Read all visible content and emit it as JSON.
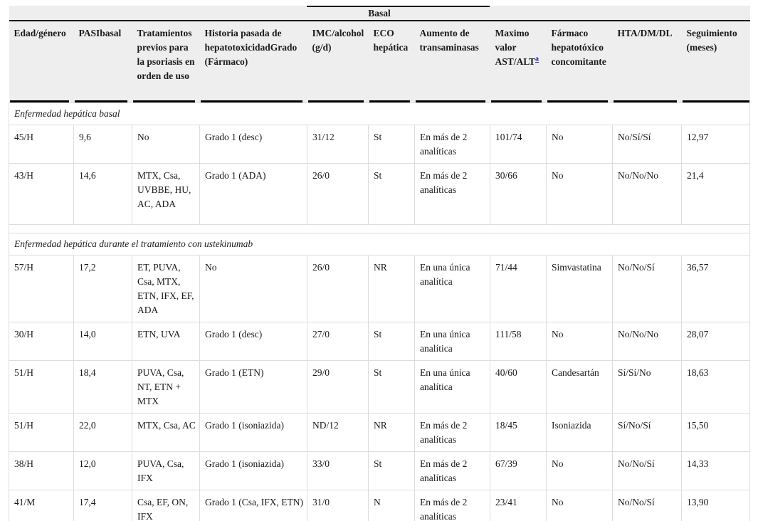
{
  "table": {
    "group_header": "Basal",
    "footnote_marker": "a",
    "columns": [
      {
        "label": "Edad/género"
      },
      {
        "label": "PASIbasal"
      },
      {
        "label": "Tratamientos previos para la psoriasis en orden de uso"
      },
      {
        "label": "Historia pasada de hepatotoxicidadGrado (Fármaco)"
      },
      {
        "label": "IMC/alcohol (g/d)"
      },
      {
        "label": "ECO hepática"
      },
      {
        "label": "Aumento de transaminasas"
      },
      {
        "label": "Maximo valor AST/ALT",
        "sup": "a"
      },
      {
        "label": "Fármaco hepatotóxico concomitante"
      },
      {
        "label": "HTA/DM/DL"
      },
      {
        "label": "Seguimiento (meses)"
      }
    ],
    "sections": [
      {
        "title": "Enfermedad hepática basal",
        "rows": [
          [
            "45/H",
            "9,6",
            "No",
            "Grado 1 (desc)",
            "31/12",
            "St",
            "En más de 2 analíticas",
            "101/74",
            "No",
            "No/Sí/Sí",
            "12,97"
          ],
          [
            "43/H",
            "14,6",
            "MTX, Csa, UVBBE, HU, AC, ADA",
            "Grado 1 (ADA)",
            "26/0",
            "St",
            "En más de 2 analíticas",
            "30/66",
            "No",
            "No/No/No",
            "21,4"
          ]
        ]
      },
      {
        "title": "Enfermedad hepática durante el tratamiento con ustekinumab",
        "rows": [
          [
            "57/H",
            "17,2",
            "ET, PUVA, Csa, MTX, ETN, IFX, EF, ADA",
            "No",
            "26/0",
            "NR",
            "En una única analítica",
            "71/44",
            "Simvastatina",
            "No/No/Sí",
            "36,57"
          ],
          [
            "30/H",
            "14,0",
            "ETN, UVA",
            "Grado 1 (desc)",
            "27/0",
            "St",
            "En una única analítica",
            "111/58",
            "No",
            "No/No/No",
            "28,07"
          ],
          [
            "51/H",
            "18,4",
            "PUVA, Csa, NT, ETN + MTX",
            "Grado 1 (ETN)",
            "29/0",
            "St",
            "En una única analítica",
            "40/60",
            "Candesartán",
            "Sí/Sí/No",
            "18,63"
          ],
          [
            "51/H",
            "22,0",
            "MTX, Csa, AC",
            "Grado 1 (isoniazida)",
            "ND/12",
            "NR",
            "En más de 2 analíticas",
            "18/45",
            "Isoniazida",
            "Sí/No/Sí",
            "15,50"
          ],
          [
            "38/H",
            "12,0",
            "PUVA, Csa, IFX",
            "Grado 1 (isoniazida)",
            "33/0",
            "St",
            "En más de 2 analíticas",
            "67/39",
            "No",
            "No/No/Sí",
            "14,33"
          ],
          [
            "41/M",
            "17,4",
            "Csa, EF, ON, IFX",
            "Grado 1 (Csa, IFX, ETN)",
            "31/0",
            "N",
            "En más de 2 analíticas",
            "23/41",
            "No",
            "No/No/Sí",
            "13,90"
          ]
        ]
      }
    ]
  },
  "colors": {
    "header_background": "#eeeeee",
    "rule_black": "#000000",
    "grid_gray": "#dddddd",
    "footnote_link_blue": "#2222cc",
    "text": "#1a1a1a",
    "page_background": "#ffffff"
  }
}
